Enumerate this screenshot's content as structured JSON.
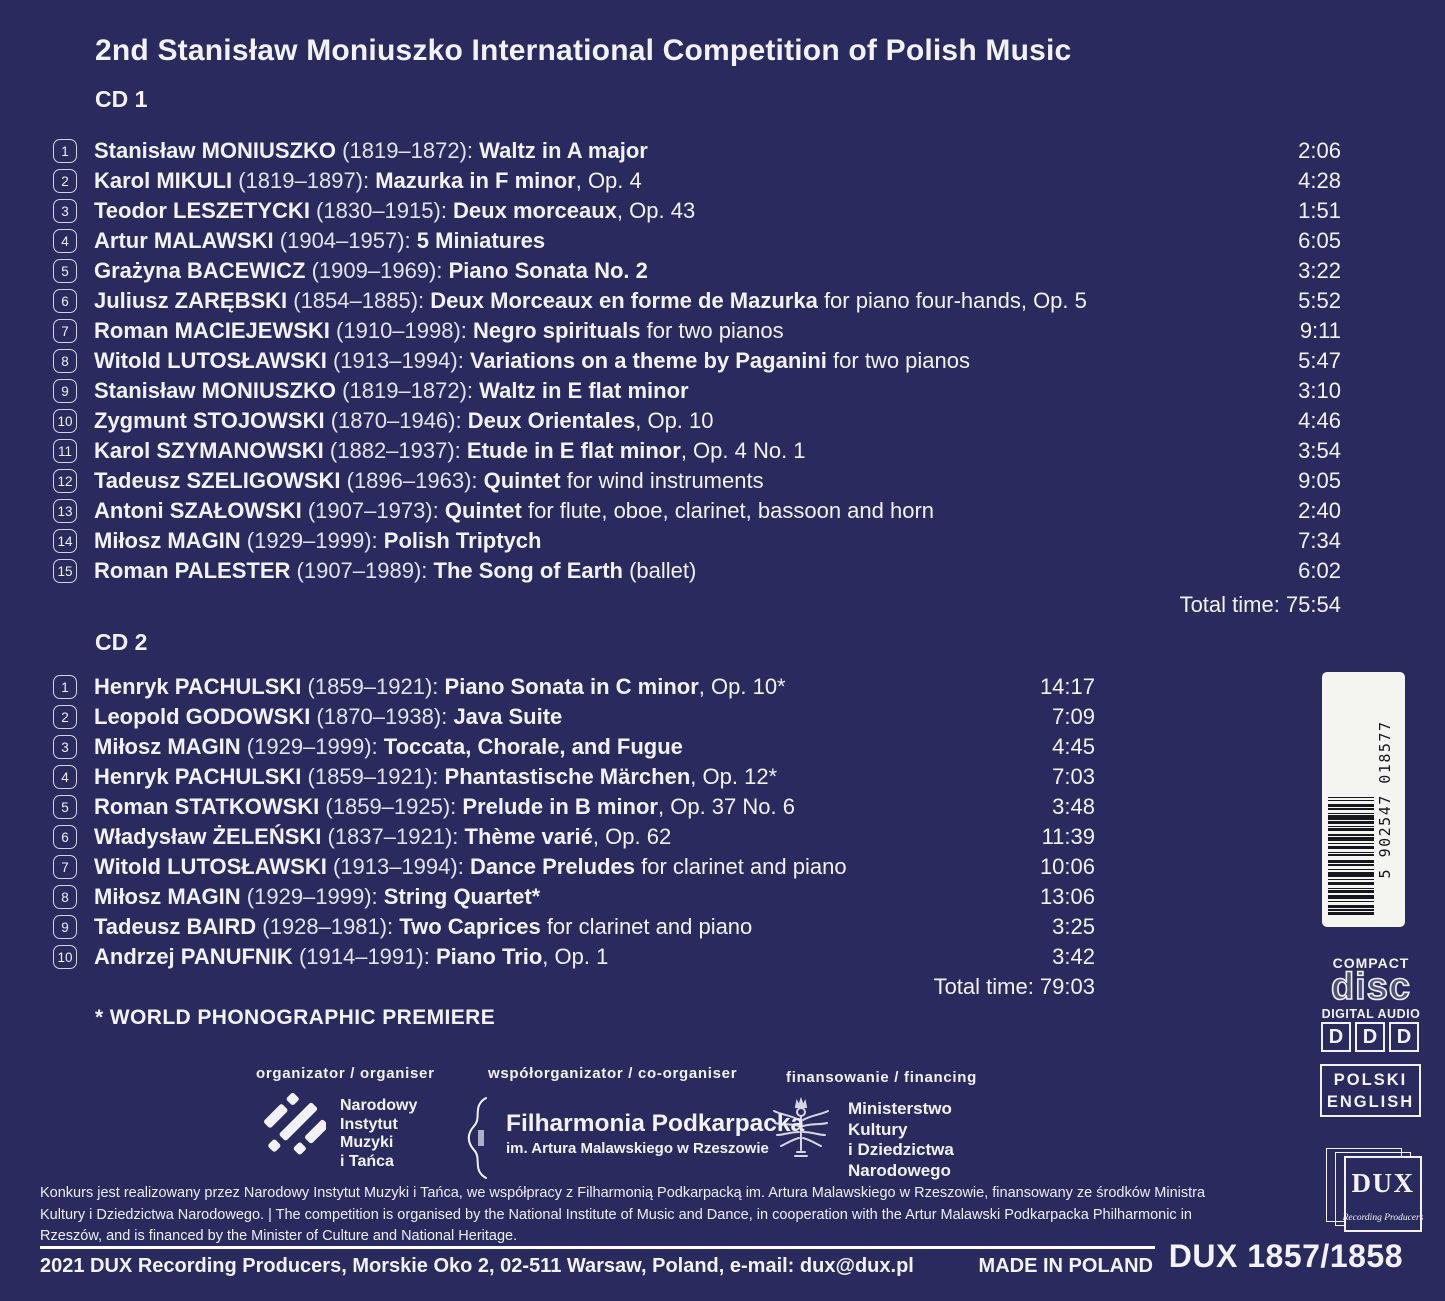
{
  "title": "2nd Stanisław Moniuszko International Competition of Polish Music",
  "cd1": {
    "label": "CD 1",
    "total": "Total time: 75:54",
    "tracks": [
      {
        "num": "1",
        "composer": "Stanisław MONIUSZKO",
        "dates": "(1819–1872):",
        "work": "Waltz in A major",
        "rest": "",
        "time": "2:06"
      },
      {
        "num": "2",
        "composer": "Karol MIKULI",
        "dates": "(1819–1897):",
        "work": "Mazurka in F minor",
        "rest": ", Op. 4",
        "time": "4:28"
      },
      {
        "num": "3",
        "composer": "Teodor LESZETYCKI",
        "dates": "(1830–1915):",
        "work": "Deux morceaux",
        "rest": ", Op. 43",
        "time": "1:51"
      },
      {
        "num": "4",
        "composer": "Artur MALAWSKI",
        "dates": "(1904–1957):",
        "work": "5 Miniatures",
        "rest": "",
        "time": "6:05"
      },
      {
        "num": "5",
        "composer": "Grażyna BACEWICZ",
        "dates": "(1909–1969):",
        "work": "Piano Sonata No. 2",
        "rest": "",
        "time": "3:22"
      },
      {
        "num": "6",
        "composer": "Juliusz ZARĘBSKI",
        "dates": "(1854–1885):",
        "work": "Deux Morceaux en forme de Mazurka",
        "rest": " for piano four-hands, Op. 5",
        "time": "5:52"
      },
      {
        "num": "7",
        "composer": "Roman MACIEJEWSKI",
        "dates": "(1910–1998):",
        "work": "Negro spirituals",
        "rest": " for two pianos",
        "time": "9:11"
      },
      {
        "num": "8",
        "composer": "Witold LUTOSŁAWSKI",
        "dates": "(1913–1994):",
        "work": "Variations on a theme by Paganini",
        "rest": " for two pianos",
        "time": "5:47"
      },
      {
        "num": "9",
        "composer": "Stanisław MONIUSZKO",
        "dates": "(1819–1872):",
        "work": "Waltz in E flat minor",
        "rest": "",
        "time": "3:10"
      },
      {
        "num": "10",
        "composer": "Zygmunt STOJOWSKI",
        "dates": "(1870–1946):",
        "work": "Deux Orientales",
        "rest": ", Op. 10",
        "time": "4:46"
      },
      {
        "num": "11",
        "composer": "Karol SZYMANOWSKI",
        "dates": "(1882–1937):",
        "work": "Etude in E flat minor",
        "rest": ", Op. 4 No. 1",
        "time": "3:54"
      },
      {
        "num": "12",
        "composer": "Tadeusz SZELIGOWSKI",
        "dates": "(1896–1963):",
        "work": "Quintet",
        "rest": " for wind instruments",
        "time": "9:05"
      },
      {
        "num": "13",
        "composer": "Antoni SZAŁOWSKI",
        "dates": "(1907–1973):",
        "work": "Quintet",
        "rest": " for flute, oboe, clarinet, bassoon and horn",
        "time": "2:40"
      },
      {
        "num": "14",
        "composer": "Miłosz MAGIN",
        "dates": "(1929–1999):",
        "work": "Polish Triptych",
        "rest": "",
        "time": "7:34"
      },
      {
        "num": "15",
        "composer": "Roman PALESTER",
        "dates": "(1907–1989):",
        "work": "The Song of Earth",
        "rest": " (ballet)",
        "time": "6:02"
      }
    ]
  },
  "cd2": {
    "label": "CD 2",
    "total": "Total time: 79:03",
    "tracks": [
      {
        "num": "1",
        "composer": "Henryk PACHULSKI",
        "dates": "(1859–1921):",
        "work": "Piano Sonata in C minor",
        "rest": ", Op. 10*",
        "time": "14:17"
      },
      {
        "num": "2",
        "composer": "Leopold GODOWSKI",
        "dates": "(1870–1938):",
        "work": "Java Suite",
        "rest": "",
        "time": "7:09"
      },
      {
        "num": "3",
        "composer": "Miłosz MAGIN",
        "dates": "(1929–1999):",
        "work": "Toccata, Chorale, and Fugue",
        "rest": "",
        "time": "4:45"
      },
      {
        "num": "4",
        "composer": "Henryk PACHULSKI",
        "dates": "(1859–1921):",
        "work": "Phantastische Märchen",
        "rest": ", Op. 12*",
        "time": "7:03"
      },
      {
        "num": "5",
        "composer": "Roman STATKOWSKI",
        "dates": "(1859–1925):",
        "work": "Prelude in B minor",
        "rest": ", Op. 37 No. 6",
        "time": "3:48"
      },
      {
        "num": "6",
        "composer": "Władysław ŻELEŃSKI",
        "dates": "(1837–1921):",
        "work": "Thème varié",
        "rest": ", Op. 62",
        "time": "11:39"
      },
      {
        "num": "7",
        "composer": "Witold LUTOSŁAWSKI",
        "dates": "(1913–1994):",
        "work": "Dance Preludes",
        "rest": " for clarinet and piano",
        "time": "10:06"
      },
      {
        "num": "8",
        "composer": "Miłosz MAGIN",
        "dates": "(1929–1999):",
        "work": "String Quartet*",
        "rest": "",
        "time": "13:06"
      },
      {
        "num": "9",
        "composer": "Tadeusz BAIRD",
        "dates": "(1928–1981):",
        "work": "Two Caprices",
        "rest": " for clarinet and piano",
        "time": "3:25"
      },
      {
        "num": "10",
        "composer": "Andrzej PANUFNIK",
        "dates": "(1914–1991):",
        "work": "Piano Trio",
        "rest": ", Op. 1",
        "time": "3:42"
      }
    ]
  },
  "premiere_note": "* WORLD PHONOGRAPHIC PREMIERE",
  "credits": {
    "organizer": {
      "label": "organizator / organiser",
      "name_lines": [
        "Narodowy",
        "Instytut",
        "Muzyki",
        "i Tańca"
      ]
    },
    "coorganizer": {
      "label": "współorganizator / co-organiser",
      "name": "Filharmonia Podkarpacka",
      "subname": "im. Artura Malawskiego w Rzeszowie"
    },
    "financing": {
      "label": "finansowanie / financing",
      "name_lines": [
        "Ministerstwo",
        "Kultury",
        "i Dziedzictwa",
        "Narodowego"
      ]
    }
  },
  "fine_print": "Konkurs jest realizowany przez Narodowy Instytut Muzyki i Tańca, we współpracy z Filharmonią Podkarpacką im. Artura Malawskiego w Rzeszowie, finansowany ze środków Ministra Kultury i Dziedzictwa Narodowego.  |  The competition is organised by the National Institute of Music and Dance, in cooperation with the Artur Malawski Podkarpacka Philharmonic in Rzeszów, and is financed by the Minister of Culture and National Heritage.",
  "footer": {
    "address": "2021 DUX Recording Producers, Morskie Oko 2, 02-511 Warsaw, Poland, e-mail: dux@dux.pl",
    "made_in": "MADE IN POLAND",
    "catalog": "DUX 1857/1858"
  },
  "side": {
    "barcode_digits": "5 902547 018577",
    "cd_logo": {
      "top": "COMPACT",
      "main": "disc",
      "bottom": "DIGITAL AUDIO"
    },
    "ddd": [
      "D",
      "D",
      "D"
    ],
    "languages": [
      "POLSKI",
      "ENGLISH"
    ],
    "dux_logo": {
      "name": "DUX",
      "sub": "Recording Producers"
    }
  },
  "colors": {
    "background": "#292b5f",
    "text": "#f1f1f7",
    "barcode_background": "#f4f4f0",
    "barcode_ink": "#16161f"
  }
}
